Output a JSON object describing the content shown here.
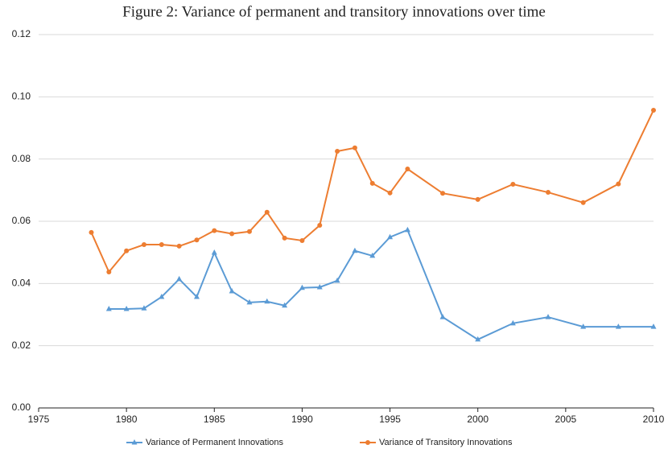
{
  "chart_data": {
    "type": "line",
    "title": "Figure 2: Variance of permanent and transitory innovations over time",
    "x": [
      1978,
      1979,
      1980,
      1981,
      1982,
      1983,
      1984,
      1985,
      1986,
      1987,
      1988,
      1989,
      1990,
      1991,
      1992,
      1993,
      1994,
      1995,
      1996,
      1998,
      2000,
      2002,
      2004,
      2006,
      2008,
      2010
    ],
    "series": [
      {
        "name": "Variance of Permanent Innovations",
        "color": "#5b9bd5",
        "marker": "triangle",
        "values": [
          null,
          0.0318,
          0.0318,
          0.032,
          0.0357,
          0.0414,
          0.0357,
          0.0499,
          0.0375,
          0.0339,
          0.0342,
          0.0329,
          0.0386,
          0.0388,
          0.0409,
          0.0505,
          0.0489,
          0.0549,
          0.0572,
          0.0292,
          0.022,
          0.0272,
          0.0292,
          0.0261,
          0.0261,
          0.0261
        ]
      },
      {
        "name": "Variance of Transitory Innovations",
        "color": "#ed7d31",
        "marker": "circle",
        "values": [
          0.0564,
          0.0437,
          0.0505,
          0.0525,
          0.0525,
          0.052,
          0.054,
          0.057,
          0.056,
          0.0567,
          0.0629,
          0.0546,
          0.0538,
          0.0587,
          0.0825,
          0.0836,
          0.0722,
          0.0691,
          0.0768,
          0.069,
          0.067,
          0.0719,
          0.0693,
          0.066,
          0.072,
          0.0957
        ]
      }
    ],
    "xlim": [
      1975,
      2010
    ],
    "xticks": [
      1975,
      1980,
      1985,
      1990,
      1995,
      2000,
      2005,
      2010
    ],
    "ylim": [
      0,
      0.12
    ],
    "yticks": [
      {
        "value": 0,
        "label": "0.00"
      },
      {
        "value": 0.02,
        "label": "0.02"
      },
      {
        "value": 0.04,
        "label": "0.04"
      },
      {
        "value": 0.06,
        "label": "0.06"
      },
      {
        "value": 0.08,
        "label": "0.08"
      },
      {
        "value": 0.1,
        "label": "0.10"
      },
      {
        "value": 0.12,
        "label": "0.12"
      }
    ],
    "grid": true,
    "legend": "bottom"
  }
}
